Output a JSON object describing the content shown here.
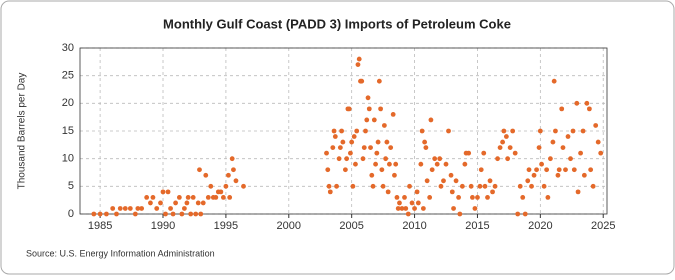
{
  "chart_data": {
    "type": "scatter",
    "title": "Monthly Gulf Coast (PADD 3) Imports of Petroleum Coke",
    "y_label": "Thousand Barrels per Day",
    "source": "Source: U.S. Energy Information Administration",
    "color": "#e4692a",
    "grid": true,
    "xlim": [
      1983.4,
      2025.3
    ],
    "xticks": [
      1985,
      1990,
      1995,
      2000,
      2005,
      2010,
      2015,
      2020,
      2025
    ],
    "ylim": [
      0,
      30
    ],
    "yticks": [
      0,
      5,
      10,
      15,
      20,
      25,
      30
    ],
    "x": [
      1984.5,
      1985,
      1985.5,
      1986,
      1986.3,
      1986.6,
      1987,
      1987.4,
      1987.8,
      1988,
      1988.3,
      1988.7,
      1989,
      1989.2,
      1989.5,
      1989.8,
      1990,
      1990.2,
      1990.4,
      1990.6,
      1990.8,
      1991,
      1991.3,
      1991.5,
      1991.7,
      1991.9,
      1992,
      1992.2,
      1992.4,
      1992.6,
      1992.8,
      1992.9,
      1993,
      1993.2,
      1993.4,
      1993.6,
      1993.8,
      1994,
      1994.2,
      1994.4,
      1994.6,
      1994.8,
      1995,
      1995.2,
      1995.3,
      1995.5,
      1995.6,
      1995.8,
      1996.4,
      2003,
      2003.1,
      2003.2,
      2003.3,
      2003.5,
      2003.6,
      2003.7,
      2003.8,
      2004,
      2004.1,
      2004.2,
      2004.3,
      2004.5,
      2004.6,
      2004.7,
      2004.8,
      2004.9,
      2005,
      2005.1,
      2005.2,
      2005.3,
      2005.4,
      2005.5,
      2005.6,
      2005.7,
      2005.8,
      2005.9,
      2006,
      2006.1,
      2006.2,
      2006.3,
      2006.4,
      2006.5,
      2006.6,
      2006.7,
      2006.8,
      2006.9,
      2007,
      2007.1,
      2007.2,
      2007.3,
      2007.4,
      2007.5,
      2007.6,
      2007.7,
      2007.8,
      2007.9,
      2008,
      2008.1,
      2008.3,
      2008.4,
      2008.5,
      2008.6,
      2008.7,
      2008.8,
      2009,
      2009.2,
      2009.3,
      2009.5,
      2009.6,
      2009.8,
      2010,
      2010.2,
      2010.3,
      2010.5,
      2010.6,
      2010.7,
      2010.8,
      2010.9,
      2011,
      2011.2,
      2011.3,
      2011.4,
      2011.6,
      2011.8,
      2012,
      2012.1,
      2012.3,
      2012.5,
      2012.7,
      2012.9,
      2013,
      2013.1,
      2013.3,
      2013.5,
      2013.6,
      2013.8,
      2014,
      2014.1,
      2014.3,
      2014.5,
      2014.6,
      2014.8,
      2015,
      2015.2,
      2015.3,
      2015.5,
      2015.6,
      2015.8,
      2016,
      2016.2,
      2016.4,
      2016.6,
      2016.8,
      2017,
      2017.1,
      2017.3,
      2017.4,
      2017.6,
      2017.8,
      2018,
      2018.2,
      2018.4,
      2018.6,
      2018.8,
      2019,
      2019.1,
      2019.3,
      2019.5,
      2019.7,
      2019.9,
      2020,
      2020.1,
      2020.3,
      2020.5,
      2020.6,
      2020.8,
      2021,
      2021.1,
      2021.2,
      2021.4,
      2021.5,
      2021.7,
      2021.8,
      2022,
      2022.2,
      2022.4,
      2022.6,
      2022.7,
      2022.9,
      2023,
      2023.2,
      2023.4,
      2023.5,
      2023.7,
      2023.9,
      2024,
      2024.2,
      2024.4,
      2024.6,
      2024.8
    ],
    "values": [
      0,
      0,
      0,
      1,
      0,
      1,
      1,
      1,
      0,
      1,
      1,
      3,
      2,
      3,
      1,
      2,
      4,
      0,
      4,
      1,
      0,
      2,
      3,
      0,
      1,
      2,
      3,
      0,
      3,
      0,
      2,
      8,
      0,
      2,
      7,
      3,
      5,
      3,
      3,
      4,
      4,
      3,
      5,
      7,
      3,
      10,
      8,
      6,
      5,
      11,
      8,
      5,
      4,
      12,
      15,
      14,
      5,
      10,
      12,
      15,
      13,
      8,
      10,
      19,
      19,
      11,
      13,
      5,
      14,
      9,
      15,
      27,
      28,
      24,
      24,
      10,
      12,
      15,
      17,
      21,
      19,
      12,
      7,
      5,
      17,
      9,
      11,
      13,
      24,
      19,
      8,
      5,
      16,
      10,
      13,
      4,
      9,
      12,
      18,
      7,
      9,
      3,
      1,
      2,
      1,
      3,
      1,
      0,
      5,
      2,
      1,
      4,
      2,
      9,
      15,
      1,
      13,
      12,
      6,
      3,
      17,
      8,
      10,
      9,
      10,
      5,
      6,
      9,
      15,
      7,
      4,
      1,
      6,
      3,
      0,
      5,
      9,
      11,
      11,
      5,
      3,
      1,
      3,
      5,
      8,
      11,
      5,
      3,
      6,
      4,
      5,
      10,
      12,
      13,
      15,
      14,
      10,
      12,
      15,
      11,
      0,
      5,
      3,
      0,
      6,
      8,
      5,
      7,
      8,
      12,
      15,
      9,
      5,
      8,
      3,
      10,
      13,
      24,
      15,
      7,
      8,
      19,
      12,
      8,
      14,
      10,
      15,
      8,
      20,
      4,
      11,
      15,
      7,
      20,
      19,
      8,
      5,
      16,
      13,
      11
    ]
  }
}
